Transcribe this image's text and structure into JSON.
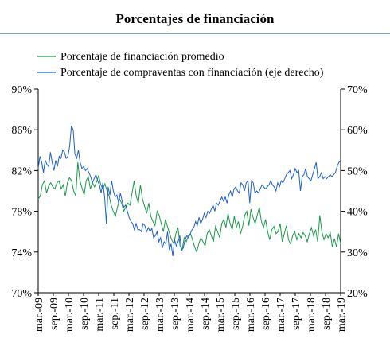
{
  "chart_data": {
    "type": "line",
    "title": "Porcentajes de financiación",
    "x_tick_labels": [
      "mar.-09",
      "sep.-09",
      "mar.-10",
      "sep.-10",
      "mar.-11",
      "sep.-11",
      "mar.-12",
      "sep.-12",
      "mar.-13",
      "sep.-13",
      "mar.-14",
      "sep.-14",
      "mar.-15",
      "sep.-15",
      "mar.-16",
      "sep.-16",
      "mar.-17",
      "sep.-17",
      "mar.-18",
      "sep.-18",
      "mar.-19"
    ],
    "y_left": {
      "ticks": [
        "70%",
        "74%",
        "78%",
        "82%",
        "86%",
        "90%"
      ],
      "range": [
        70,
        90
      ]
    },
    "y_right": {
      "ticks": [
        "20%",
        "30%",
        "40%",
        "50%",
        "60%",
        "70%"
      ],
      "range": [
        20,
        70
      ]
    },
    "legend_position": "top-left",
    "grid": false,
    "series": [
      {
        "name": "Porcentaje de financiación promedio",
        "axis": "left",
        "color": "#1a9a4a",
        "values": [
          79.2,
          79.5,
          80.6,
          81.0,
          79.8,
          80.5,
          80.8,
          80.4,
          80.2,
          80.8,
          81.0,
          80.2,
          80.6,
          79.5,
          80.8,
          81.3,
          81.0,
          80.0,
          79.5,
          82.8,
          81.0,
          80.3,
          79.6,
          81.0,
          81.4,
          80.2,
          80.8,
          80.4,
          80.9,
          81.5,
          80.6,
          80.2,
          80.7,
          80.0,
          79.5,
          78.6,
          78.0,
          77.5,
          78.4,
          79.2,
          78.8,
          78.0,
          78.4,
          78.8,
          78.6,
          79.8,
          81.0,
          79.5,
          78.8,
          80.6,
          79.2,
          78.5,
          77.8,
          78.8,
          77.5,
          77.0,
          76.6,
          78.0,
          77.6,
          76.8,
          76.0,
          77.2,
          76.5,
          75.8,
          75.2,
          74.8,
          75.8,
          76.4,
          74.6,
          74.2,
          75.4,
          75.0,
          75.6,
          75.8,
          75.2,
          74.5,
          74.0,
          74.8,
          75.4,
          75.0,
          74.6,
          75.8,
          76.2,
          75.6,
          75.0,
          76.5,
          76.0,
          75.4,
          76.8,
          77.2,
          76.4,
          77.8,
          76.8,
          76.2,
          77.5,
          76.4,
          77.0,
          75.8,
          76.5,
          77.6,
          78.0,
          76.6,
          78.2,
          77.4,
          76.8,
          77.6,
          78.4,
          77.0,
          76.4,
          77.2,
          76.0,
          75.2,
          76.2,
          76.5,
          75.8,
          76.0,
          76.8,
          75.0,
          75.8,
          76.6,
          75.2,
          74.8,
          75.6,
          76.0,
          75.2,
          75.8,
          75.4,
          75.9,
          75.6,
          75.0,
          75.8,
          76.4,
          75.6,
          76.2,
          75.0,
          77.6,
          76.0,
          75.2,
          75.8,
          75.4,
          75.9,
          74.5,
          75.3,
          74.5,
          75.8,
          74.8
        ]
      },
      {
        "name": "Porcentaje de compraventas con financiación (eje derecho)",
        "axis": "right",
        "color": "#1f5fd2",
        "values": [
          50.5,
          53.5,
          52.0,
          49.5,
          52.5,
          51.5,
          51.0,
          54.5,
          52.0,
          50.0,
          52.5,
          51.0,
          53.5,
          53.0,
          55.0,
          54.5,
          53.0,
          53.5,
          56.0,
          61.0,
          60.0,
          54.0,
          53.0,
          55.0,
          52.0,
          50.5,
          51.0,
          50.0,
          50.5,
          49.5,
          48.5,
          47.0,
          48.0,
          49.0,
          47.5,
          46.5,
          44.5,
          47.0,
          43.5,
          37.0,
          46.0,
          44.0,
          47.5,
          45.0,
          43.5,
          44.0,
          42.0,
          44.5,
          42.5,
          41.0,
          41.5,
          40.0,
          38.5,
          37.5,
          37.0,
          35.5,
          37.0,
          35.5,
          35.5,
          35.0,
          37.0,
          36.5,
          35.0,
          36.0,
          35.0,
          35.8,
          33.5,
          34.0,
          35.0,
          32.5,
          33.5,
          31.0,
          32.5,
          32.0,
          35.0,
          30.5,
          32.0,
          29.0,
          33.0,
          31.5,
          32.5,
          34.0,
          30.5,
          31.0,
          33.0,
          34.0,
          33.5,
          34.5,
          35.5,
          36.0,
          37.5,
          36.5,
          38.5,
          37.0,
          38.0,
          39.5,
          38.5,
          40.0,
          39.5,
          40.5,
          41.5,
          40.0,
          42.0,
          41.5,
          42.5,
          43.5,
          42.5,
          43.5,
          42.0,
          44.0,
          45.0,
          43.5,
          45.5,
          46.0,
          45.0,
          44.5,
          47.0,
          46.5,
          45.0,
          47.0,
          47.5,
          42.0,
          47.5,
          47.0,
          44.5,
          45.0,
          44.5,
          45.5,
          46.5,
          46.0,
          45.5,
          46.0,
          46.5,
          47.5,
          46.5,
          46.0,
          45.0,
          47.0,
          46.0,
          47.5,
          47.0,
          48.0,
          49.0,
          49.5,
          50.0,
          48.0,
          49.0,
          50.5,
          49.5,
          50.0,
          45.0,
          48.5,
          49.0,
          50.5,
          48.5,
          48.0,
          47.5,
          49.0,
          50.5,
          52.0,
          48.0,
          48.5,
          49.5,
          48.0,
          48.5,
          48.0,
          48.5,
          49.0,
          48.5,
          49.0,
          49.5,
          51.0,
          52.0,
          52.5
        ]
      }
    ]
  }
}
